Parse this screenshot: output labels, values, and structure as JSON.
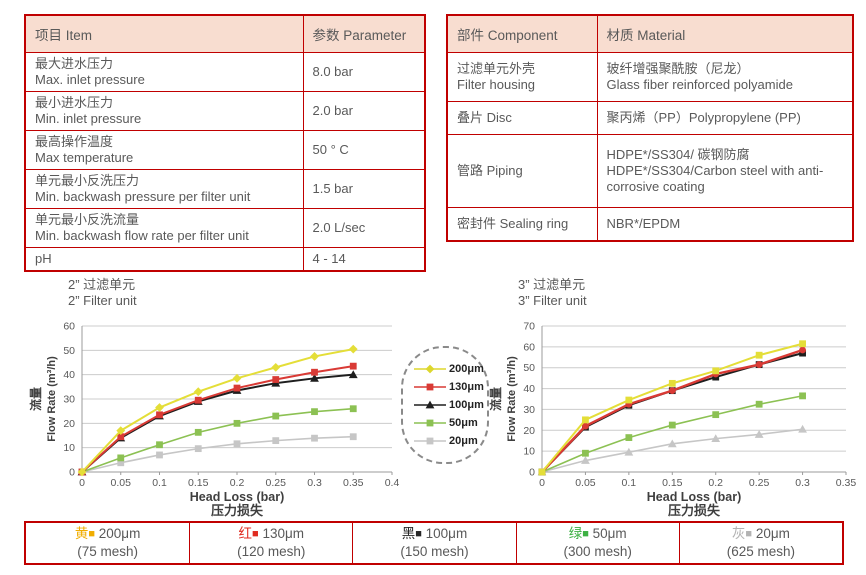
{
  "glyphs": {
    "square": "■"
  },
  "spec_table": {
    "header": {
      "item": "项目 Item",
      "parameter": "参数 Parameter"
    },
    "rows": [
      {
        "cn": "最大进水压力",
        "en": "Max. inlet pressure",
        "value": "8.0 bar"
      },
      {
        "cn": "最小进水压力",
        "en": "Min. inlet pressure",
        "value": "2.0 bar"
      },
      {
        "cn": "最高操作温度",
        "en": "Max temperature",
        "value": "50 ° C"
      },
      {
        "cn": "单元最小反洗压力",
        "en": "Min. backwash pressure per filter unit",
        "value": "1.5 bar"
      },
      {
        "cn": "单元最小反洗流量",
        "en": "Min. backwash flow rate per filter unit",
        "value": "2.0 L/sec"
      },
      {
        "cn": "pH",
        "en": "",
        "value": "4 - 14"
      }
    ]
  },
  "material_table": {
    "header": {
      "component": "部件 Component",
      "material": "材质 Material"
    },
    "rows": [
      {
        "cn": "过滤单元外壳",
        "en": "Filter housing",
        "mat_cn": "玻纤增强聚酰胺（尼龙）",
        "mat_en": "Glass fiber reinforced polyamide"
      },
      {
        "cn": "叠片 Disc",
        "en": "",
        "mat_cn": "聚丙烯（PP）Polypropylene (PP)",
        "mat_en": ""
      },
      {
        "cn": "管路 Piping",
        "en": "",
        "mat_cn": "HDPE*/SS304/ 碳钢防腐",
        "mat_en": "HDPE*/SS304/Carbon steel with anti-corrosive coating"
      },
      {
        "cn": "密封件 Sealing ring",
        "en": "",
        "mat_cn": "NBR*/EPDM",
        "mat_en": ""
      }
    ]
  },
  "chart_data": [
    {
      "type": "line",
      "title_cn": "2”  过滤单元",
      "title_en": "2”  Filter unit",
      "xlabel": "Head Loss (bar)",
      "xlabel_cn": "压力损失",
      "ylabel": "Flow Rate (m³/h)",
      "ylabel_cn": "流量",
      "xlim": [
        0,
        0.4
      ],
      "ylim": [
        0,
        60
      ],
      "xticks": [
        "0",
        "0.05",
        "0.1",
        "0.15",
        "0.2",
        "0.25",
        "0.3",
        "0.35",
        "0.4"
      ],
      "yticks": [
        0,
        10,
        20,
        30,
        40,
        50,
        60
      ],
      "grid": true,
      "x": [
        0,
        0.05,
        0.1,
        0.15,
        0.2,
        0.25,
        0.3,
        0.35
      ],
      "series": [
        {
          "name": "200μm",
          "color": "#e4de38",
          "marker": "diamond",
          "width": 2,
          "values": [
            0,
            17,
            26.5,
            33,
            38.5,
            43,
            47.5,
            50.5
          ]
        },
        {
          "name": "130μm",
          "color": "#d93a35",
          "marker": "square",
          "width": 2,
          "values": [
            0,
            14.5,
            23.5,
            29.5,
            34.5,
            38,
            41,
            43.5
          ]
        },
        {
          "name": "100μm",
          "color": "#1e1e1e",
          "marker": "triangle",
          "width": 2,
          "values": [
            0,
            14,
            23,
            29,
            33.5,
            36.5,
            38.5,
            40
          ]
        },
        {
          "name": "50μm",
          "color": "#8cc153",
          "marker": "square",
          "width": 1.6,
          "values": [
            0,
            5.8,
            11.2,
            16.3,
            20,
            23,
            24.8,
            26
          ]
        },
        {
          "name": "20μm",
          "color": "#c6c6c6",
          "marker": "square",
          "width": 1.6,
          "values": [
            0,
            3.8,
            7,
            9.6,
            11.6,
            12.9,
            13.9,
            14.5
          ]
        }
      ]
    },
    {
      "type": "line",
      "title_cn": "3”  过滤单元",
      "title_en": "3”  Filter unit",
      "xlabel": "Head Loss (bar)",
      "xlabel_cn": "压力损失",
      "ylabel": "Flow Rate (m³/h)",
      "ylabel_cn": "流量",
      "xlim": [
        0,
        0.35
      ],
      "ylim": [
        0,
        70
      ],
      "xticks": [
        "0",
        "0.05",
        "0.1",
        "0.15",
        "0.2",
        "0.25",
        "0.3",
        "0.35"
      ],
      "yticks": [
        0,
        10,
        20,
        30,
        40,
        50,
        60,
        70
      ],
      "grid": true,
      "x": [
        0,
        0.05,
        0.1,
        0.15,
        0.2,
        0.25,
        0.3
      ],
      "series": [
        {
          "name": "200μm",
          "color": "#e4de38",
          "marker": "square",
          "width": 2,
          "values": [
            0,
            25,
            34.5,
            42.5,
            48.5,
            56,
            61.5
          ]
        },
        {
          "name": "130μm",
          "color": "#d93a35",
          "marker": "circle",
          "width": 2.4,
          "values": [
            0,
            22,
            32.5,
            39,
            47,
            51.5,
            58.5
          ]
        },
        {
          "name": "100μm",
          "color": "#1e1e1e",
          "marker": "square",
          "width": 2,
          "values": [
            0,
            21.5,
            32,
            39,
            45.5,
            51.5,
            57
          ]
        },
        {
          "name": "50μm",
          "color": "#8cc153",
          "marker": "square",
          "width": 1.6,
          "values": [
            0,
            9,
            16.5,
            22.5,
            27.5,
            32.5,
            36.5
          ]
        },
        {
          "name": "20μm",
          "color": "#c6c6c6",
          "marker": "triangle",
          "width": 1.6,
          "values": [
            0,
            5.5,
            9.5,
            13.5,
            16,
            18,
            20.5
          ]
        }
      ]
    }
  ],
  "chart_legend": {
    "items": [
      {
        "label": "200μm",
        "color": "#ddd72e",
        "marker": "diamond"
      },
      {
        "label": "130μm",
        "color": "#d93a35",
        "marker": "square"
      },
      {
        "label": "100μm",
        "color": "#1e1e1e",
        "marker": "triangle"
      },
      {
        "label": "50μm",
        "color": "#8cc153",
        "marker": "square"
      },
      {
        "label": "20μm",
        "color": "#c6c6c6",
        "marker": "square"
      }
    ]
  },
  "mesh_table": {
    "cells": [
      {
        "cn": "黄",
        "color": "#f0ad00",
        "size": " 200μm",
        "mesh": "(75 mesh)"
      },
      {
        "cn": "红",
        "color": "#e02b20",
        "size": " 130μm",
        "mesh": "(120 mesh)"
      },
      {
        "cn": "黑",
        "color": "#262626",
        "size": " 100μm",
        "mesh": "(150 mesh)"
      },
      {
        "cn": "绿",
        "color": "#3cb043",
        "size": " 50μm",
        "mesh": "(300 mesh)"
      },
      {
        "cn": "灰",
        "color": "#b3b3b3",
        "size": " 20μm",
        "mesh": "(625 mesh)"
      }
    ]
  }
}
